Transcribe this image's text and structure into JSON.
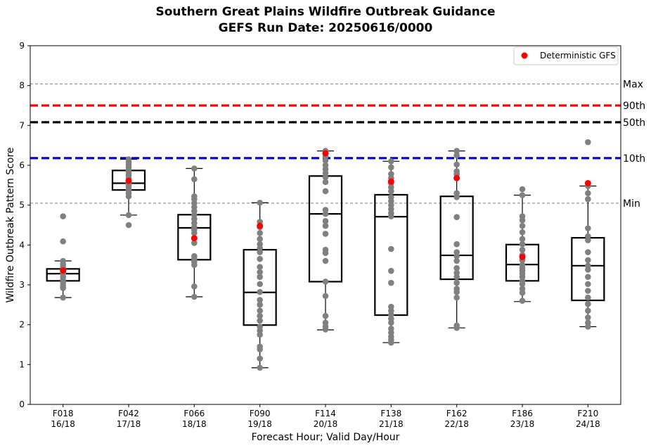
{
  "chart_data": {
    "type": "box",
    "title": "Southern Great Plains Wildfire Outbreak Guidance",
    "subtitle": "GEFS Run Date: 20250616/0000",
    "xlabel": "Forecast Hour; Valid Day/Hour",
    "ylabel": "Wildfire Outbreak Pattern Score",
    "ylim": [
      0,
      9
    ],
    "yticks": [
      0,
      1,
      2,
      3,
      4,
      5,
      6,
      7,
      8,
      9
    ],
    "grid": false,
    "legend": {
      "placement": "top-right",
      "entries": [
        "Deterministic GFS"
      ]
    },
    "categories": [
      {
        "hour": "F018",
        "valid": "16/18"
      },
      {
        "hour": "F042",
        "valid": "17/18"
      },
      {
        "hour": "F066",
        "valid": "18/18"
      },
      {
        "hour": "F090",
        "valid": "19/18"
      },
      {
        "hour": "F114",
        "valid": "20/18"
      },
      {
        "hour": "F138",
        "valid": "21/18"
      },
      {
        "hour": "F162",
        "valid": "22/18"
      },
      {
        "hour": "F186",
        "valid": "23/18"
      },
      {
        "hour": "F210",
        "valid": "24/18"
      }
    ],
    "reference_lines": [
      {
        "label": "Max",
        "value": 8.04,
        "color": "#808080",
        "style": "dashed-thin"
      },
      {
        "label": "90th",
        "value": 7.5,
        "color": "#ff0000",
        "style": "dashed-thick"
      },
      {
        "label": "50th",
        "value": 7.08,
        "color": "#000000",
        "style": "dashed-thick"
      },
      {
        "label": "10th",
        "value": 6.18,
        "color": "#0000cc",
        "style": "dashed-thick"
      },
      {
        "label": "Min",
        "value": 5.05,
        "color": "#808080",
        "style": "dashed-thin"
      }
    ],
    "boxes": [
      {
        "whisker_low": 2.68,
        "q1": 3.1,
        "median": 3.28,
        "q3": 3.4,
        "whisker_high": 3.6
      },
      {
        "whisker_low": 4.75,
        "q1": 5.38,
        "median": 5.55,
        "q3": 5.87,
        "whisker_high": 6.15
      },
      {
        "whisker_low": 2.7,
        "q1": 3.63,
        "median": 4.43,
        "q3": 4.76,
        "whisker_high": 5.92
      },
      {
        "whisker_low": 0.92,
        "q1": 1.99,
        "median": 2.81,
        "q3": 3.88,
        "whisker_high": 5.06
      },
      {
        "whisker_low": 1.87,
        "q1": 3.08,
        "median": 4.78,
        "q3": 5.73,
        "whisker_high": 6.36
      },
      {
        "whisker_low": 1.55,
        "q1": 2.24,
        "median": 4.71,
        "q3": 5.26,
        "whisker_high": 6.1
      },
      {
        "whisker_low": 1.92,
        "q1": 3.14,
        "median": 3.74,
        "q3": 5.22,
        "whisker_high": 6.36
      },
      {
        "whisker_low": 2.58,
        "q1": 3.1,
        "median": 3.51,
        "q3": 4.01,
        "whisker_high": 5.25
      },
      {
        "whisker_low": 1.95,
        "q1": 2.61,
        "median": 3.48,
        "q3": 4.18,
        "whisker_high": 5.48
      }
    ],
    "members": [
      [
        4.72,
        4.09,
        3.6,
        3.52,
        3.45,
        3.38,
        3.32,
        3.28,
        3.2,
        3.12,
        3.05,
        2.98,
        2.92,
        2.68
      ],
      [
        6.15,
        6.08,
        6.02,
        5.95,
        5.88,
        5.82,
        5.75,
        5.68,
        5.6,
        5.55,
        5.5,
        5.45,
        5.38,
        5.3,
        5.22,
        4.75,
        4.5
      ],
      [
        5.92,
        5.65,
        5.22,
        5.15,
        5.05,
        4.95,
        4.85,
        4.75,
        4.65,
        4.55,
        4.45,
        4.38,
        4.3,
        4.05,
        3.72,
        3.65,
        3.58,
        3.5,
        2.96,
        2.7
      ],
      [
        5.06,
        4.58,
        4.45,
        4.3,
        4.15,
        4.02,
        3.92,
        3.82,
        3.65,
        3.45,
        3.32,
        3.2,
        3.02,
        2.82,
        2.62,
        2.5,
        2.35,
        2.22,
        2.1,
        1.95,
        1.85,
        1.75,
        1.45,
        1.38,
        1.15,
        0.92
      ],
      [
        6.36,
        6.3,
        6.22,
        6.12,
        6.0,
        5.9,
        5.8,
        5.7,
        5.58,
        5.35,
        4.88,
        4.78,
        4.6,
        4.48,
        4.28,
        3.88,
        3.8,
        3.6,
        3.08,
        2.72,
        2.22,
        2.05,
        1.95,
        1.88
      ],
      [
        6.1,
        5.95,
        5.78,
        5.68,
        5.55,
        5.45,
        5.35,
        5.2,
        5.1,
        5.0,
        4.9,
        4.8,
        4.72,
        3.9,
        3.35,
        3.05,
        2.45,
        2.35,
        2.25,
        2.15,
        2.05,
        1.9,
        1.8,
        1.7,
        1.62,
        1.55
      ],
      [
        6.36,
        6.25,
        6.02,
        5.85,
        5.78,
        5.3,
        5.2,
        4.7,
        4.02,
        3.82,
        3.72,
        3.6,
        3.42,
        3.3,
        3.2,
        3.05,
        2.9,
        2.82,
        2.68,
        1.98,
        1.92
      ],
      [
        5.4,
        5.25,
        4.72,
        4.62,
        4.48,
        4.32,
        4.15,
        4.02,
        3.88,
        3.75,
        3.62,
        3.5,
        3.42,
        3.35,
        3.28,
        3.2,
        3.1,
        3.02,
        2.9,
        2.8,
        2.6
      ],
      [
        6.58,
        5.48,
        5.3,
        5.15,
        4.42,
        4.22,
        4.12,
        3.82,
        3.62,
        3.48,
        3.38,
        3.2,
        3.02,
        2.85,
        2.68,
        2.52,
        2.35,
        2.18,
        2.05,
        1.95
      ]
    ],
    "deterministic_gfs": [
      3.36,
      5.61,
      4.17,
      4.48,
      6.3,
      5.59,
      5.68,
      3.7,
      5.55
    ],
    "colors": {
      "members": "#808080",
      "deterministic": "#ff0000",
      "box": "#000000"
    }
  }
}
